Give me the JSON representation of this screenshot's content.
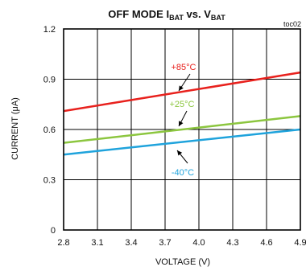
{
  "figure": {
    "title_main": "OFF MODE I",
    "title_sub1": "BAT",
    "title_mid": " vs. V",
    "title_sub2": "BAT",
    "code": "toc02"
  },
  "chart_data": {
    "type": "line",
    "xlabel": "VOLTAGE (V)",
    "ylabel": "CURRENT (μA)",
    "xlim": [
      2.8,
      4.9
    ],
    "ylim": [
      0,
      1.2
    ],
    "x_ticks": [
      "2.8",
      "3.1",
      "3.4",
      "3.7",
      "4.0",
      "4.3",
      "4.6",
      "4.9"
    ],
    "y_ticks": [
      "0",
      "0.3",
      "0.6",
      "0.9",
      "1.2"
    ],
    "grid": true,
    "series": [
      {
        "name": "+85°C",
        "color": "#e8211d",
        "x": [
          2.8,
          4.9
        ],
        "y": [
          0.71,
          0.94
        ]
      },
      {
        "name": "+25°C",
        "color": "#8cc63f",
        "x": [
          2.8,
          4.9
        ],
        "y": [
          0.52,
          0.68
        ]
      },
      {
        "name": "-40°C",
        "color": "#1fa3dc",
        "x": [
          2.8,
          4.9
        ],
        "y": [
          0.45,
          0.6
        ]
      }
    ]
  }
}
